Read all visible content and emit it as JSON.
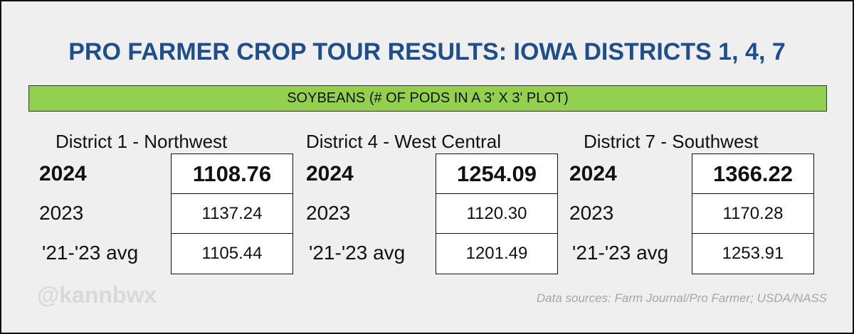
{
  "header": {
    "title": "PRO FARMER CROP TOUR RESULTS: IOWA DISTRICTS 1, 4, 7",
    "subtitle": "SOYBEANS (# OF PODS IN A 3' X 3' PLOT)"
  },
  "districts": [
    {
      "name": "District 1 - Northwest",
      "rows": [
        {
          "label": "2024",
          "value": "1108.76"
        },
        {
          "label": "2023",
          "value": "1137.24"
        },
        {
          "label": "'21-'23 avg",
          "value": "1105.44"
        }
      ]
    },
    {
      "name": "District 4 - West Central",
      "rows": [
        {
          "label": "2024",
          "value": "1254.09"
        },
        {
          "label": "2023",
          "value": "1120.30"
        },
        {
          "label": "'21-'23 avg",
          "value": "1201.49"
        }
      ]
    },
    {
      "name": "District 7 - Southwest",
      "rows": [
        {
          "label": "2024",
          "value": "1366.22"
        },
        {
          "label": "2023",
          "value": "1170.28"
        },
        {
          "label": "'21-'23 avg",
          "value": "1253.91"
        }
      ]
    }
  ],
  "watermark": "@kannbwx",
  "source": "Data sources: Farm Journal/Pro Farmer; USDA/NASS"
}
